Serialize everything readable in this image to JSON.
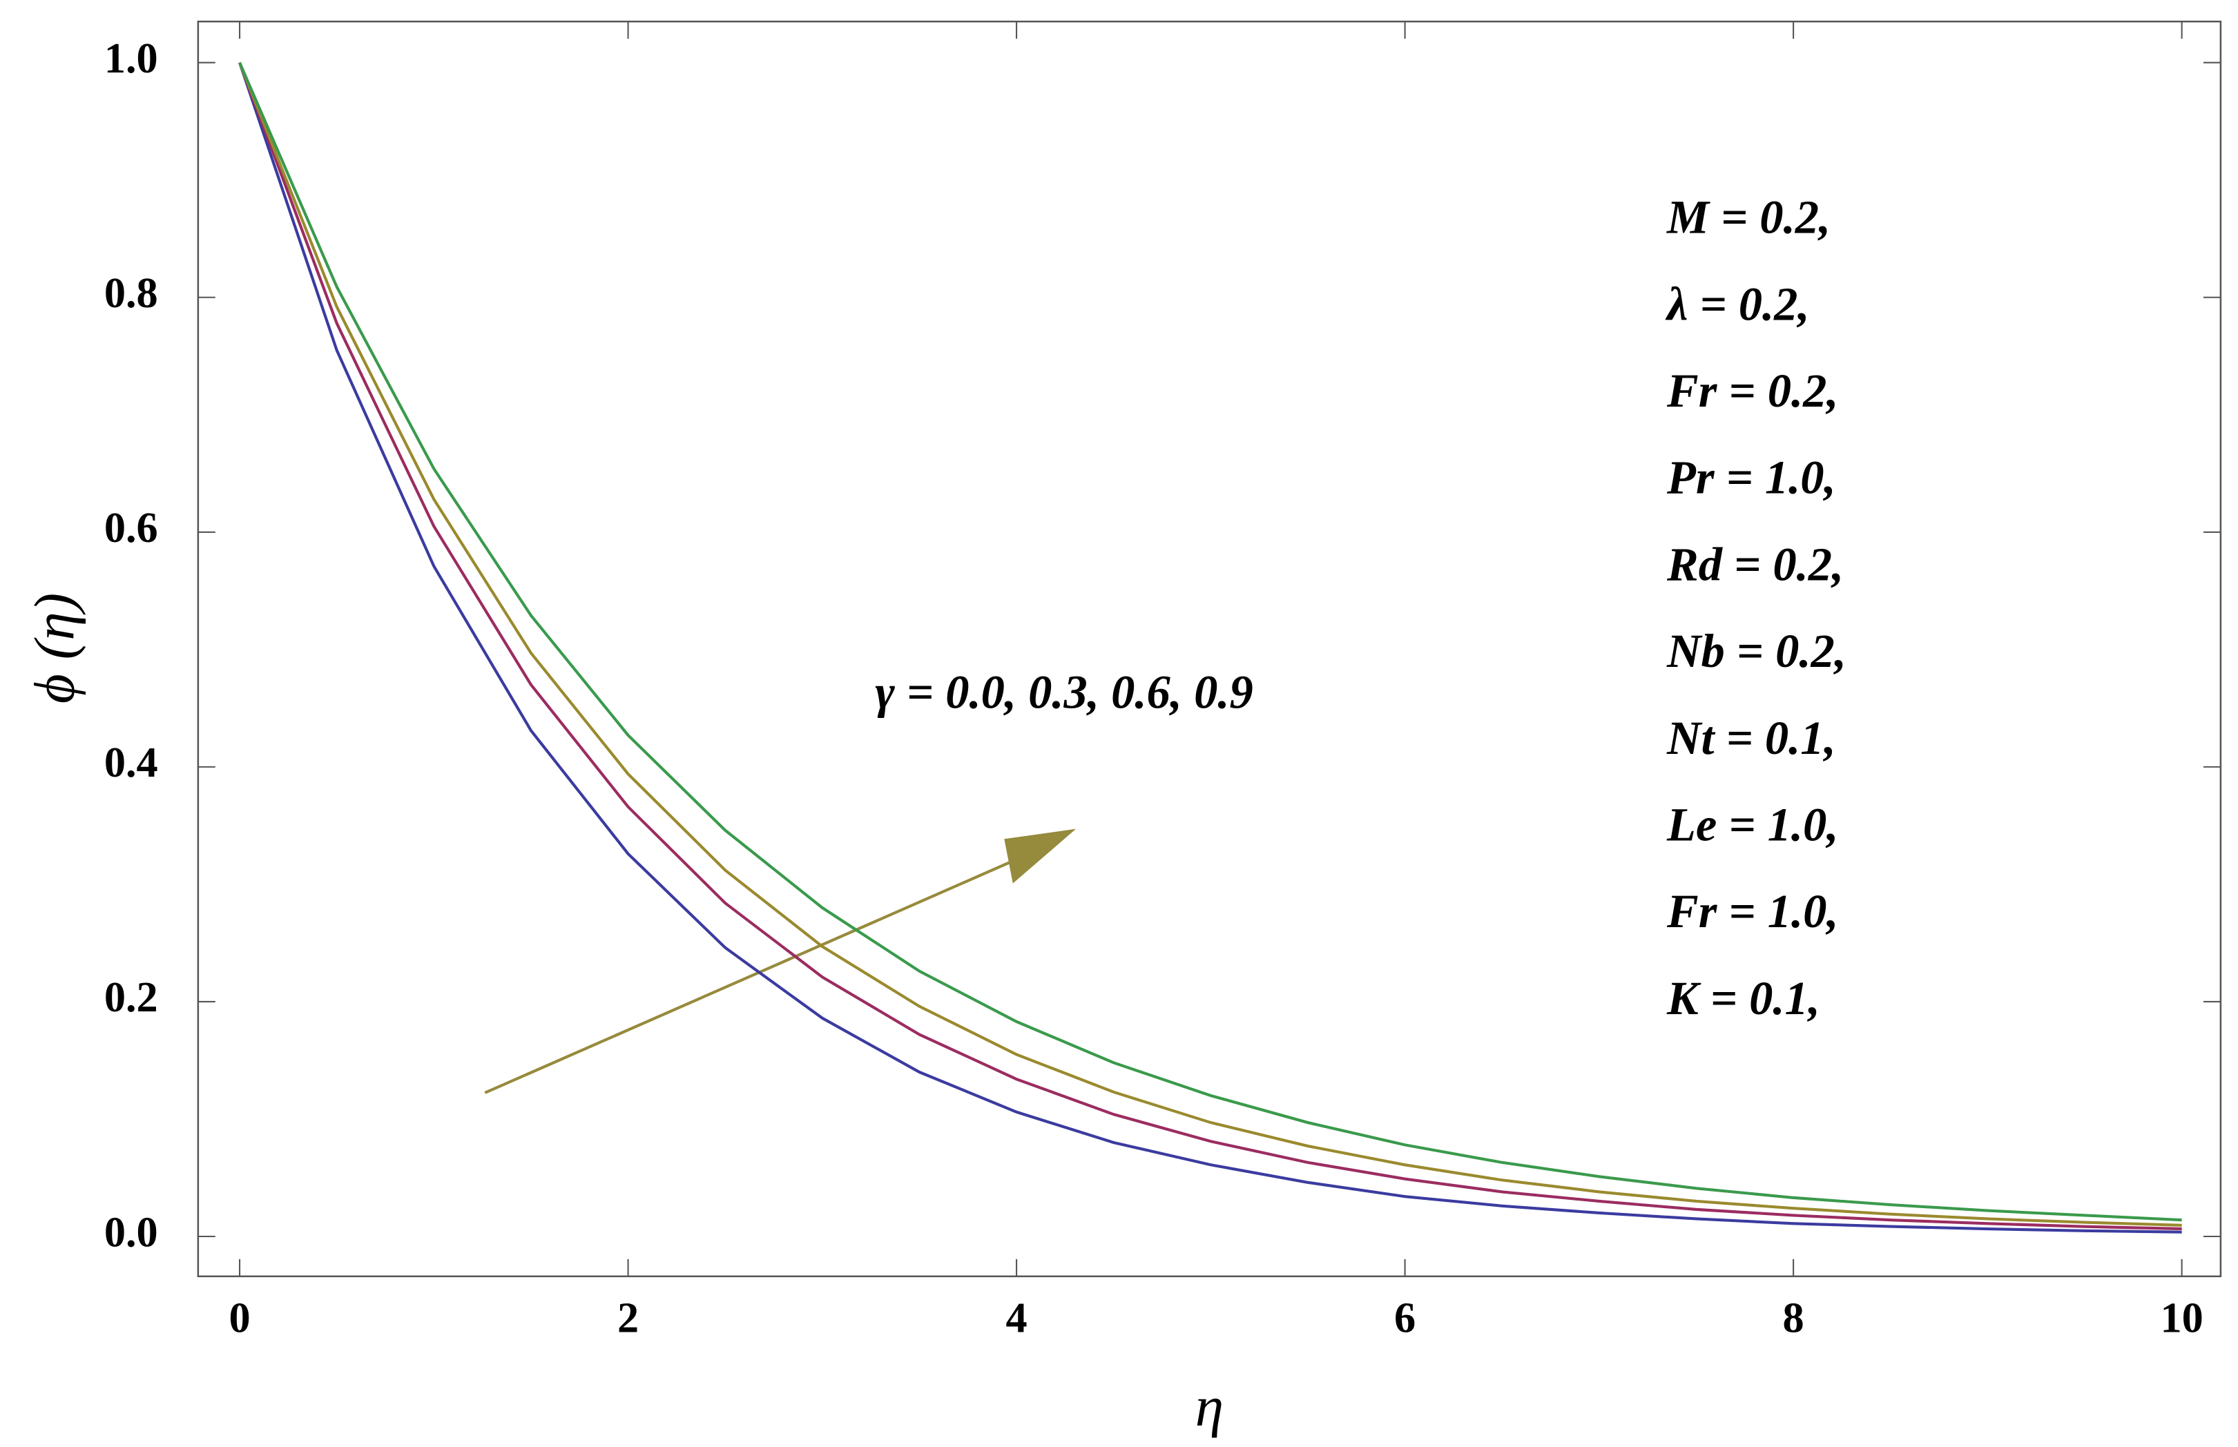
{
  "chart_data": {
    "type": "line",
    "x_label": "η",
    "y_label": "ϕ (η)",
    "x": [
      0,
      0.5,
      1,
      1.5,
      2,
      2.5,
      3,
      3.5,
      4,
      4.5,
      5,
      5.5,
      6,
      6.5,
      7,
      7.5,
      8,
      8.5,
      9,
      9.5,
      10
    ],
    "series": [
      {
        "color": "#3b3ba0",
        "values": [
          1,
          0.755,
          0.571,
          0.431,
          0.326,
          0.246,
          0.186,
          0.14,
          0.106,
          0.08,
          0.061,
          0.046,
          0.034,
          0.026,
          0.02,
          0.015,
          0.011,
          0.0085,
          0.0064,
          0.0048,
          0.0037
        ]
      },
      {
        "color": "#9b2c60",
        "values": [
          1,
          0.778,
          0.605,
          0.47,
          0.366,
          0.284,
          0.221,
          0.172,
          0.134,
          0.104,
          0.081,
          0.063,
          0.049,
          0.038,
          0.03,
          0.023,
          0.018,
          0.014,
          0.011,
          0.0084,
          0.0065
        ]
      },
      {
        "color": "#9a8a2e",
        "values": [
          1,
          0.792,
          0.628,
          0.497,
          0.394,
          0.312,
          0.247,
          0.196,
          0.155,
          0.123,
          0.097,
          0.077,
          0.061,
          0.048,
          0.038,
          0.03,
          0.024,
          0.019,
          0.015,
          0.012,
          0.0095
        ]
      },
      {
        "color": "#3a9a4c",
        "values": [
          1,
          0.809,
          0.654,
          0.529,
          0.427,
          0.346,
          0.28,
          0.226,
          0.183,
          0.148,
          0.12,
          0.097,
          0.078,
          0.063,
          0.051,
          0.041,
          0.033,
          0.027,
          0.022,
          0.018,
          0.014
        ]
      }
    ],
    "xlim": [
      -0.214,
      10.2
    ],
    "ylim": [
      -0.034,
      1.035
    ],
    "xticks": [
      0,
      2,
      4,
      6,
      8,
      10
    ],
    "yticks": [
      {
        "value": 0,
        "label": "0.0"
      },
      0.2,
      0.4,
      0.6,
      0.8,
      {
        "value": 1,
        "label": "1.0"
      }
    ],
    "annotations": {
      "gamma": "γ  =  0.0,  0.3,  0.6,  0.9",
      "parameters": [
        "M  =  0.2,",
        "λ = 0.2,",
        "Fr = 0.2,",
        "Pr = 1.0,",
        "Rd = 0.2,",
        "Nb = 0.2,",
        "Nt = 0.1,",
        "Le = 1.0,",
        "Fr = 1.0,",
        "K = 0.1,"
      ]
    }
  }
}
